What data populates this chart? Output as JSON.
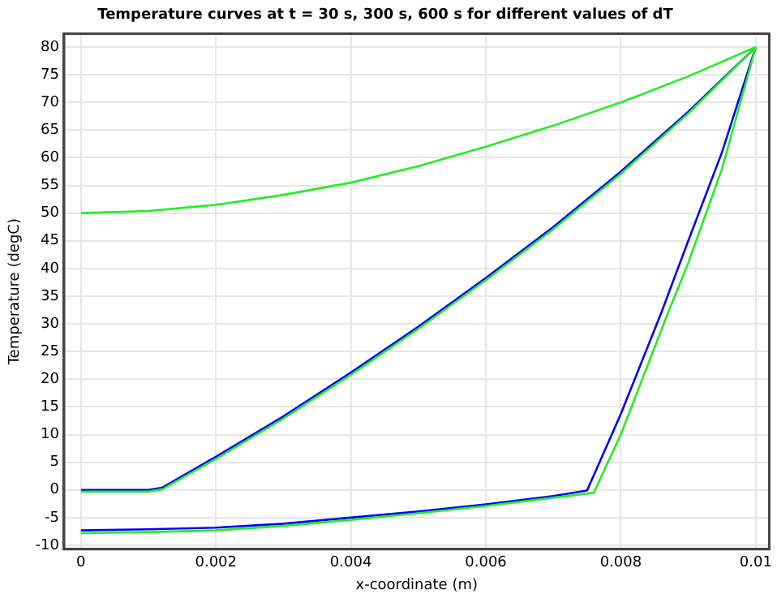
{
  "chart_data": {
    "type": "line",
    "title": "Temperature curves at t = 30 s, 300 s, 600 s for different values of dT",
    "xlabel": "x-coordinate (m)",
    "ylabel": "Temperature (degC)",
    "xlim": [
      -0.00025,
      0.0102
    ],
    "xticks": [
      0,
      0.002,
      0.004,
      0.006,
      0.008,
      {
        "value": 0.01,
        "label": "0.01"
      }
    ],
    "ylim": [
      -10.7,
      82.4
    ],
    "yticks": [
      -10,
      -5,
      0,
      5,
      10,
      15,
      20,
      25,
      30,
      35,
      40,
      45,
      50,
      55,
      60,
      65,
      70,
      75,
      80
    ],
    "grid": true,
    "legend": false,
    "marker": "none",
    "line_style": "solid",
    "series": [
      {
        "color": "#0000ff",
        "x": [
          0,
          0.001,
          0.0012,
          0.002,
          0.003,
          0.004,
          0.005,
          0.006,
          0.007,
          0.008,
          0.009,
          0.01
        ],
        "values": [
          0,
          0,
          0.4,
          6,
          13.3,
          21.2,
          29.5,
          38.3,
          47.5,
          57.5,
          68.3,
          80
        ]
      },
      {
        "color": "#0000ff",
        "x": [
          0,
          0.001,
          0.002,
          0.003,
          0.004,
          0.005,
          0.006,
          0.007,
          0.0075,
          0.008,
          0.0086,
          0.009,
          0.0095,
          0.01
        ],
        "values": [
          -7.3,
          -7.1,
          -6.8,
          -6.1,
          -5.0,
          -3.9,
          -2.6,
          -1.1,
          -0.1,
          13.7,
          32,
          45,
          61,
          80
        ]
      },
      {
        "color": "#22ee22",
        "x": [
          0,
          0.001,
          0.002,
          0.003,
          0.004,
          0.005,
          0.006,
          0.007,
          0.008,
          0.009,
          0.01
        ],
        "values": [
          50,
          50.4,
          51.5,
          53.3,
          55.5,
          58.5,
          62,
          65.8,
          70,
          74.7,
          80
        ]
      },
      {
        "color": "#22ee22",
        "x": [
          0,
          0.001,
          0.0012,
          0.002,
          0.003,
          0.004,
          0.005,
          0.006,
          0.007,
          0.008,
          0.009,
          0.01
        ],
        "values": [
          -0.3,
          -0.3,
          0.1,
          5.6,
          12.9,
          20.8,
          29.1,
          37.9,
          47.1,
          57.1,
          68,
          80
        ]
      },
      {
        "color": "#22ee22",
        "x": [
          0,
          0.001,
          0.002,
          0.003,
          0.004,
          0.005,
          0.006,
          0.007,
          0.0076,
          0.008,
          0.0087,
          0.009,
          0.0095,
          0.01
        ],
        "values": [
          -7.8,
          -7.6,
          -7.3,
          -6.5,
          -5.4,
          -4.2,
          -2.9,
          -1.4,
          -0.5,
          10,
          32,
          41,
          58,
          80
        ]
      }
    ]
  }
}
